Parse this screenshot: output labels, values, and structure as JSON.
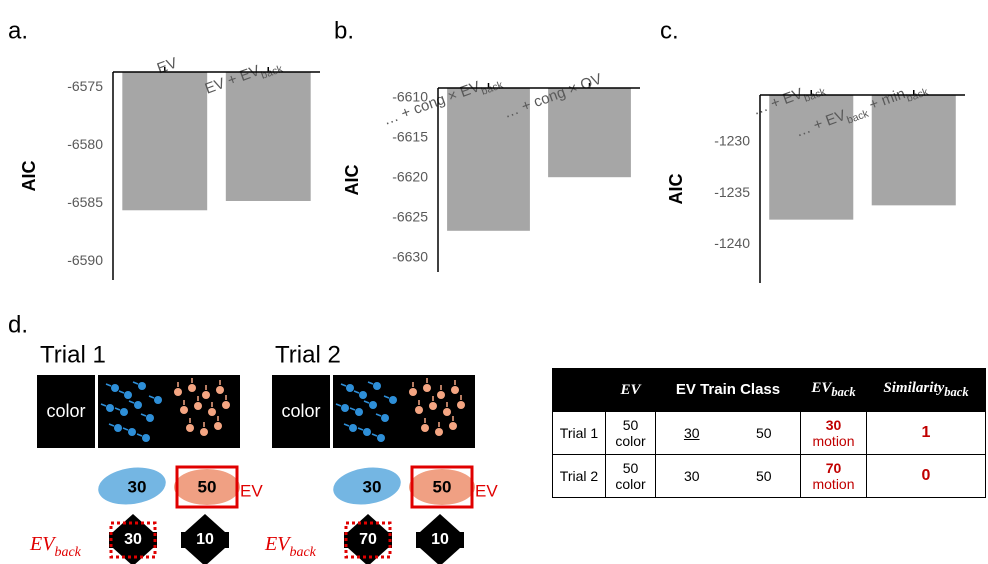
{
  "chart_data": [
    {
      "type": "bar",
      "label": "a.",
      "ylabel": "AIC",
      "categories": [
        [
          "EV"
        ],
        [
          "EV + EV",
          "back"
        ]
      ],
      "values": [
        -6585.6,
        -6584.8
      ],
      "color": "#a6a6a6",
      "ylim": [
        -6591.6,
        -6573.7
      ],
      "yticks": [
        -6575,
        -6580,
        -6585,
        -6590
      ]
    },
    {
      "type": "bar",
      "label": "b.",
      "ylabel": "AIC",
      "categories": [
        [
          "… + cong × EV",
          "back"
        ],
        [
          "… + cong × OV"
        ]
      ],
      "values": [
        -6626.6,
        -6619.9
      ],
      "color": "#a6a6a6",
      "ylim": [
        -6631.75,
        -6608.75
      ],
      "yticks": [
        -6610,
        -6615,
        -6620,
        -6625,
        -6630
      ]
    },
    {
      "type": "bar",
      "label": "c.",
      "ylabel": "AIC",
      "categories": [
        [
          "… + EV",
          "back"
        ],
        [
          "… + EV",
          "back",
          " + min",
          "back"
        ]
      ],
      "values": [
        -1237.6,
        -1236.2
      ],
      "color": "#a6a6a6",
      "ylim": [
        -1243.8,
        -1225.4
      ],
      "yticks": [
        -1230,
        -1235,
        -1240
      ]
    }
  ],
  "panel_d": {
    "label": "d.",
    "trials": [
      {
        "title": "Trial 1",
        "cue": "color",
        "ev": [
          "30",
          "50"
        ],
        "ev_label": "EV",
        "back_label": [
          "EV",
          "back"
        ],
        "back": [
          "30",
          "10"
        ]
      },
      {
        "title": "Trial 2",
        "cue": "color",
        "ev": [
          "30",
          "50"
        ],
        "ev_label": "EV",
        "back_label": [
          "EV",
          "back"
        ],
        "back": [
          "70",
          "10"
        ]
      }
    ],
    "table": {
      "header": [
        [
          "EV"
        ],
        [
          "EV Train Class"
        ],
        [
          "EV",
          "back"
        ],
        [
          "Similarity",
          "back"
        ]
      ],
      "rows": [
        {
          "label": "Trial 1",
          "ev": [
            "50",
            "color"
          ],
          "train": [
            "30",
            "50"
          ],
          "ev_back": [
            "30",
            "motion"
          ],
          "similarity": "1"
        },
        {
          "label": "Trial 2",
          "ev": [
            "50",
            "color"
          ],
          "train": [
            "30",
            "50"
          ],
          "ev_back": [
            "70",
            "motion"
          ],
          "similarity": "0"
        }
      ]
    }
  }
}
